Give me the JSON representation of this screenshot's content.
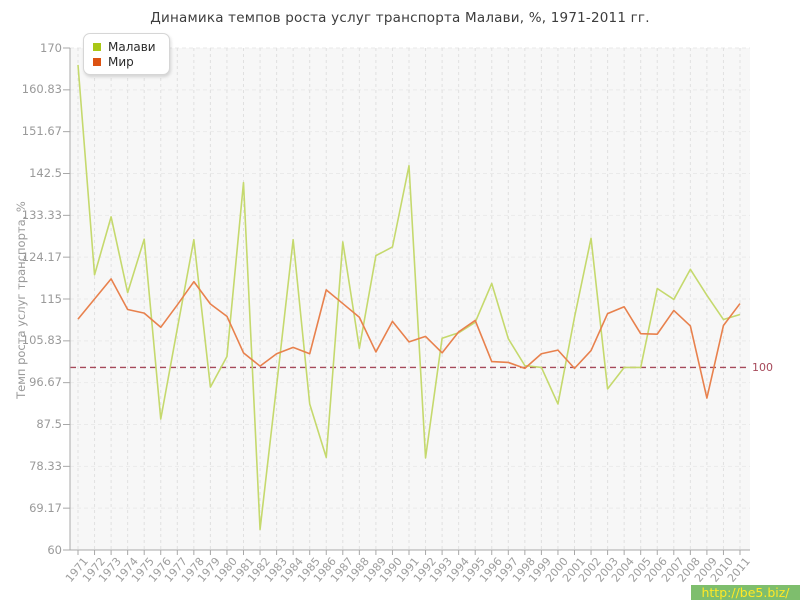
{
  "chart_data": {
    "type": "line",
    "title": "Динамика темпов роста услуг транспорта Малави, %, 1971-2011 гг.",
    "ylabel": "Темп роста услуг транспорта, %",
    "xlabel": "",
    "x": [
      1971,
      1972,
      1973,
      1974,
      1975,
      1976,
      1977,
      1978,
      1979,
      1980,
      1981,
      1982,
      1983,
      1984,
      1985,
      1986,
      1987,
      1988,
      1989,
      1990,
      1991,
      1992,
      1993,
      1994,
      1995,
      1996,
      1997,
      1998,
      1999,
      2000,
      2001,
      2002,
      2003,
      2004,
      2005,
      2006,
      2007,
      2008,
      2009,
      2010,
      2011
    ],
    "series": [
      {
        "name": "Малави",
        "color": "#c5d96d",
        "marker_color": "#a9c716",
        "values": [
          166.3,
          120.3,
          133.0,
          116.4,
          128.1,
          88.7,
          108.5,
          128.0,
          95.7,
          102.4,
          140.5,
          64.5,
          96.0,
          128.0,
          92.0,
          80.3,
          127.5,
          104.2,
          124.5,
          126.4,
          144.2,
          80.2,
          106.4,
          107.6,
          109.9,
          118.4,
          106.3,
          100.4,
          100.0,
          92.0,
          111.0,
          128.3,
          95.3,
          100.0,
          100.0,
          117.3,
          114.9,
          121.5,
          115.8,
          110.5,
          111.6
        ]
      },
      {
        "name": "Мир",
        "color": "#e8814d",
        "marker_color": "#dc5212",
        "values": [
          110.6,
          115.0,
          119.4,
          112.7,
          111.9,
          108.8,
          113.7,
          118.8,
          113.9,
          111.2,
          103.2,
          100.3,
          103.0,
          104.4,
          103.0,
          117.0,
          114.0,
          111.0,
          103.4,
          110.1,
          105.6,
          106.8,
          103.2,
          107.8,
          110.3,
          101.3,
          101.1,
          99.8,
          103.0,
          103.8,
          99.8,
          103.7,
          111.8,
          113.3,
          107.4,
          107.3,
          112.5,
          109.1,
          93.3,
          109.2,
          114.0
        ]
      }
    ],
    "ylim": [
      60,
      170
    ],
    "yticks": [
      "60",
      "69.17",
      "78.33",
      "87.5",
      "96.67",
      "105.83",
      "115",
      "124.17",
      "133.33",
      "142.5",
      "151.67",
      "160.83",
      "170"
    ],
    "ref_line": {
      "value": 100,
      "label": "100",
      "color": "#a6495a"
    },
    "legend_position": "top-left",
    "grid": "dashed",
    "plot_bg_color": "#f7f7f7",
    "axis_color": "#a8a8a8",
    "tick_label_color": "#9a9a9a"
  },
  "watermark": {
    "text": "http://be5.biz/",
    "bg_color": "#6db659",
    "text_color": "#ffe608"
  }
}
